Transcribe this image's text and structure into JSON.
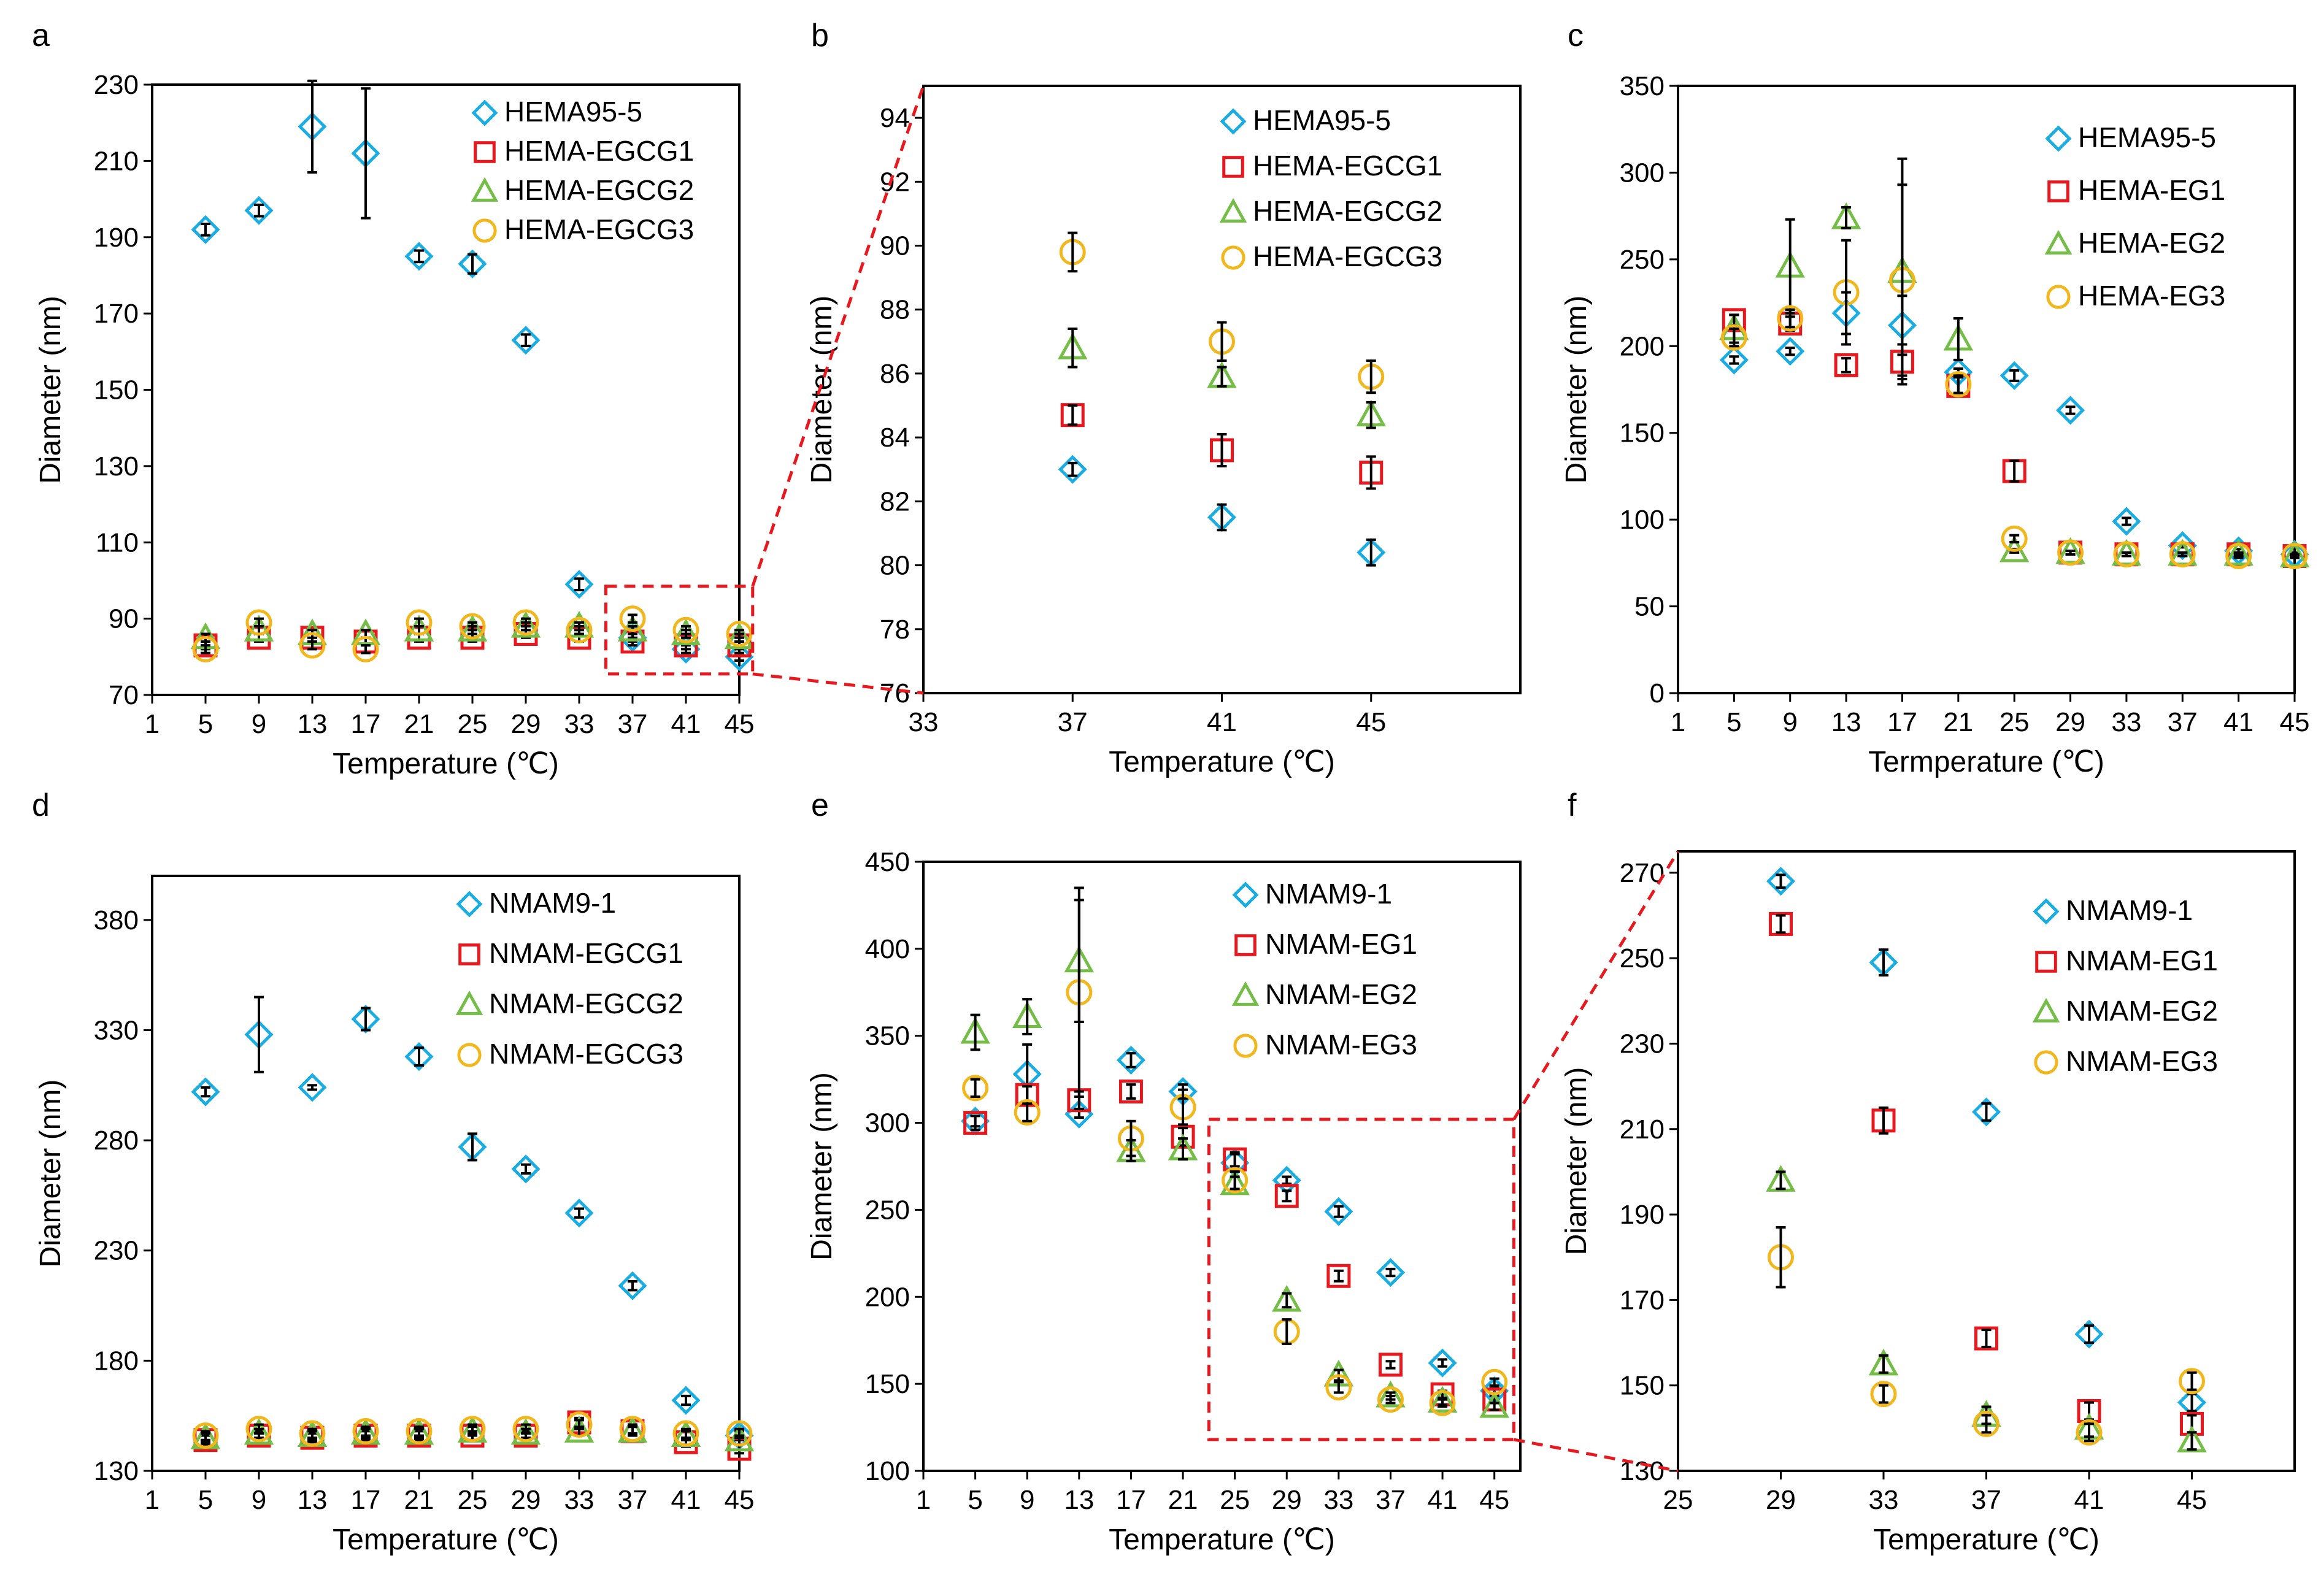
{
  "chart_data": [
    {
      "panel": "a",
      "type": "scatter",
      "xlabel": "Temperature (℃)",
      "ylabel": "Diameter (nm)",
      "xlim": [
        1,
        45
      ],
      "xticks": [
        1,
        5,
        9,
        13,
        17,
        21,
        25,
        29,
        33,
        37,
        41,
        45
      ],
      "ylim": [
        70,
        230
      ],
      "yticks": [
        70,
        90,
        110,
        130,
        150,
        170,
        190,
        210,
        230
      ],
      "legend_position": "top-right",
      "series": [
        {
          "name": "HEMA95-5",
          "marker": "diamond",
          "color": "#1AADE4",
          "x": [
            5,
            9,
            13,
            17,
            21,
            25,
            29,
            33,
            37,
            41,
            45
          ],
          "y": [
            192,
            197,
            219,
            212,
            185,
            183,
            163,
            99,
            85,
            82,
            80
          ],
          "err": [
            1.5,
            1.5,
            12,
            17,
            1.5,
            2.5,
            1.5,
            1.5,
            1,
            1,
            1
          ]
        },
        {
          "name": "HEMA-EGCG1",
          "marker": "square",
          "color": "#E8191E",
          "x": [
            5,
            9,
            13,
            17,
            21,
            25,
            29,
            33,
            37,
            41,
            45
          ],
          "y": [
            83,
            85,
            85,
            84,
            85,
            85,
            86,
            85,
            84,
            83,
            83
          ],
          "err": [
            1,
            1,
            1,
            1,
            1,
            1,
            1,
            1,
            1,
            1,
            1
          ]
        },
        {
          "name": "HEMA-EGCG2",
          "marker": "triangle",
          "color": "#74BE47",
          "x": [
            5,
            9,
            13,
            17,
            21,
            25,
            29,
            33,
            37,
            41,
            45
          ],
          "y": [
            85,
            87,
            86,
            86,
            87,
            87,
            88,
            88,
            87,
            86,
            85
          ],
          "err": [
            1,
            1,
            1,
            1,
            1,
            1,
            1,
            1,
            1,
            1,
            1
          ]
        },
        {
          "name": "HEMA-EGCG3",
          "marker": "circle",
          "color": "#F2B71C",
          "x": [
            5,
            9,
            13,
            17,
            21,
            25,
            29,
            33,
            37,
            41,
            45
          ],
          "y": [
            82,
            89,
            83,
            82,
            89,
            88,
            89,
            87,
            90,
            87,
            86
          ],
          "err": [
            1,
            1,
            1,
            1,
            1,
            1,
            1,
            1,
            1,
            1,
            1
          ]
        }
      ]
    },
    {
      "panel": "b",
      "type": "scatter",
      "xlabel": "Temperature (℃)",
      "ylabel": "Diameter (nm)",
      "xlim": [
        33,
        49
      ],
      "xticks": [
        33,
        37,
        41,
        45
      ],
      "ylim": [
        76,
        95
      ],
      "yticks": [
        76,
        78,
        80,
        82,
        84,
        86,
        88,
        90,
        92,
        94
      ],
      "legend_position": "top-right",
      "series": [
        {
          "name": "HEMA95-5",
          "marker": "diamond",
          "color": "#1AADE4",
          "x": [
            37,
            41,
            45
          ],
          "y": [
            83.0,
            81.5,
            80.4
          ],
          "err": [
            0.2,
            0.4,
            0.4
          ]
        },
        {
          "name": "HEMA-EGCG1",
          "marker": "square",
          "color": "#E8191E",
          "x": [
            37,
            41,
            45
          ],
          "y": [
            84.7,
            83.6,
            82.9
          ],
          "err": [
            0.3,
            0.5,
            0.5
          ]
        },
        {
          "name": "HEMA-EGCG2",
          "marker": "triangle",
          "color": "#74BE47",
          "x": [
            37,
            41,
            45
          ],
          "y": [
            86.8,
            85.9,
            84.7
          ],
          "err": [
            0.6,
            0.3,
            0.4
          ]
        },
        {
          "name": "HEMA-EGCG3",
          "marker": "circle",
          "color": "#F2B71C",
          "x": [
            37,
            41,
            45
          ],
          "y": [
            89.8,
            87.0,
            85.9
          ],
          "err": [
            0.6,
            0.6,
            0.5
          ]
        }
      ]
    },
    {
      "panel": "c",
      "type": "scatter",
      "xlabel": "Termperature (℃)",
      "ylabel": "Diameter (nm)",
      "xlim": [
        1,
        45
      ],
      "xticks": [
        1,
        5,
        9,
        13,
        17,
        21,
        25,
        29,
        33,
        37,
        41,
        45
      ],
      "ylim": [
        0,
        350
      ],
      "yticks": [
        0,
        50,
        100,
        150,
        200,
        250,
        300,
        350
      ],
      "legend_position": "top-right",
      "series": [
        {
          "name": "HEMA95-5",
          "marker": "diamond",
          "color": "#1AADE4",
          "x": [
            5,
            9,
            13,
            17,
            21,
            25,
            29,
            33,
            37,
            41,
            45
          ],
          "y": [
            192,
            197,
            219,
            212,
            185,
            183,
            163,
            99,
            85,
            82,
            80
          ],
          "err": [
            2,
            2,
            12,
            17,
            2,
            3,
            2,
            2,
            1,
            1,
            1
          ]
        },
        {
          "name": "HEMA-EG1",
          "marker": "square",
          "color": "#E8191E",
          "x": [
            5,
            9,
            13,
            17,
            21,
            25,
            29,
            33,
            37,
            41,
            45
          ],
          "y": [
            215,
            213,
            189,
            191,
            177,
            128,
            81,
            80,
            80,
            80,
            79
          ],
          "err": [
            3,
            4,
            4,
            10,
            5,
            6,
            1,
            1,
            1,
            1,
            1
          ]
        },
        {
          "name": "HEMA-EG2",
          "marker": "triangle",
          "color": "#74BE47",
          "x": [
            5,
            9,
            13,
            17,
            21,
            25,
            29,
            33,
            37,
            41,
            45
          ],
          "y": [
            210,
            246,
            274,
            243,
            204,
            82,
            81,
            80,
            80,
            80,
            79
          ],
          "err": [
            8,
            27,
            6,
            65,
            12,
            1,
            1,
            1,
            1,
            1,
            1
          ]
        },
        {
          "name": "HEMA-EG3",
          "marker": "circle",
          "color": "#F2B71C",
          "x": [
            5,
            9,
            13,
            17,
            21,
            25,
            29,
            33,
            37,
            41,
            45
          ],
          "y": [
            205,
            216,
            231,
            238,
            178,
            89,
            81,
            80,
            80,
            79,
            79
          ],
          "err": [
            5,
            5,
            30,
            55,
            5,
            2,
            1,
            1,
            1,
            1,
            1
          ]
        }
      ]
    },
    {
      "panel": "d",
      "type": "scatter",
      "xlabel": "Temperature (℃)",
      "ylabel": "Diameter (nm)",
      "xlim": [
        1,
        45
      ],
      "xticks": [
        1,
        5,
        9,
        13,
        17,
        21,
        25,
        29,
        33,
        37,
        41,
        45
      ],
      "ylim": [
        130,
        400
      ],
      "yticks": [
        130,
        180,
        230,
        280,
        330,
        380
      ],
      "legend_position": "top-right",
      "series": [
        {
          "name": "NMAM9-1",
          "marker": "diamond",
          "color": "#1AADE4",
          "x": [
            5,
            9,
            13,
            17,
            21,
            25,
            29,
            33,
            37,
            41,
            45
          ],
          "y": [
            302,
            328,
            304,
            335,
            318,
            277,
            267,
            247,
            214,
            162,
            146
          ],
          "err": [
            2,
            17,
            1,
            5,
            4,
            6,
            2,
            2,
            2,
            2,
            2
          ]
        },
        {
          "name": "NMAM-EGCG1",
          "marker": "square",
          "color": "#E8191E",
          "x": [
            5,
            9,
            13,
            17,
            21,
            25,
            29,
            33,
            37,
            41,
            45
          ],
          "y": [
            144,
            146,
            145,
            146,
            146,
            146,
            146,
            152,
            148,
            143,
            140
          ],
          "err": [
            2,
            2,
            2,
            2,
            2,
            2,
            2,
            2,
            2,
            2,
            2
          ]
        },
        {
          "name": "NMAM-EGCG2",
          "marker": "triangle",
          "color": "#74BE47",
          "x": [
            5,
            9,
            13,
            17,
            21,
            25,
            29,
            33,
            37,
            41,
            45
          ],
          "y": [
            145,
            147,
            146,
            147,
            147,
            148,
            147,
            148,
            148,
            146,
            144
          ],
          "err": [
            2,
            2,
            2,
            2,
            2,
            2,
            2,
            2,
            2,
            2,
            2
          ]
        },
        {
          "name": "NMAM-EGCG3",
          "marker": "circle",
          "color": "#F2B71C",
          "x": [
            5,
            9,
            13,
            17,
            21,
            25,
            29,
            33,
            37,
            41,
            45
          ],
          "y": [
            146,
            149,
            147,
            148,
            148,
            149,
            149,
            151,
            149,
            147,
            147
          ],
          "err": [
            2,
            2,
            2,
            2,
            2,
            2,
            2,
            2,
            2,
            2,
            2
          ]
        }
      ]
    },
    {
      "panel": "e",
      "type": "scatter",
      "xlabel": "Temperature (℃)",
      "ylabel": "Diameter (nm)",
      "xlim": [
        1,
        47
      ],
      "xticks": [
        1,
        5,
        9,
        13,
        17,
        21,
        25,
        29,
        33,
        37,
        41,
        45
      ],
      "ylim": [
        100,
        450
      ],
      "yticks": [
        100,
        150,
        200,
        250,
        300,
        350,
        400,
        450
      ],
      "legend_position": "top-right",
      "series": [
        {
          "name": "NMAM9-1",
          "marker": "diamond",
          "color": "#1AADE4",
          "x": [
            5,
            9,
            13,
            17,
            21,
            25,
            29,
            33,
            37,
            41,
            45
          ],
          "y": [
            301,
            328,
            305,
            336,
            318,
            277,
            267,
            249,
            214,
            162,
            146
          ],
          "err": [
            3,
            17,
            2,
            4,
            4,
            5,
            2,
            3,
            2,
            2,
            2
          ]
        },
        {
          "name": "NMAM-EG1",
          "marker": "square",
          "color": "#E8191E",
          "x": [
            5,
            9,
            13,
            17,
            21,
            25,
            29,
            33,
            37,
            41,
            45
          ],
          "y": [
            300,
            316,
            313,
            318,
            292,
            279,
            258,
            212,
            161,
            144,
            141
          ],
          "err": [
            4,
            5,
            5,
            4,
            5,
            4,
            3,
            3,
            2,
            2,
            2
          ]
        },
        {
          "name": "NMAM-EG2",
          "marker": "triangle",
          "color": "#74BE47",
          "x": [
            5,
            9,
            13,
            17,
            21,
            25,
            29,
            33,
            37,
            41,
            45
          ],
          "y": [
            352,
            361,
            393,
            284,
            285,
            265,
            198,
            155,
            143,
            140,
            137
          ],
          "err": [
            10,
            10,
            35,
            6,
            6,
            4,
            4,
            3,
            2,
            2,
            2
          ]
        },
        {
          "name": "NMAM-EG3",
          "marker": "circle",
          "color": "#F2B71C",
          "x": [
            5,
            9,
            13,
            17,
            21,
            25,
            29,
            33,
            37,
            41,
            45
          ],
          "y": [
            320,
            306,
            375,
            291,
            309,
            267,
            180,
            148,
            141,
            139,
            151
          ],
          "err": [
            5,
            5,
            60,
            10,
            10,
            5,
            7,
            3,
            2,
            2,
            2
          ]
        }
      ]
    },
    {
      "panel": "f",
      "type": "scatter",
      "xlabel": "Temperature (℃)",
      "ylabel": "Diameter (nm)",
      "xlim": [
        25,
        49
      ],
      "xticks": [
        25,
        29,
        33,
        37,
        41,
        45
      ],
      "ylim": [
        130,
        275
      ],
      "yticks": [
        130,
        150,
        170,
        190,
        210,
        230,
        250,
        270
      ],
      "legend_position": "top-right",
      "series": [
        {
          "name": "NMAM9-1",
          "marker": "diamond",
          "color": "#1AADE4",
          "x": [
            29,
            33,
            37,
            41,
            45
          ],
          "y": [
            268,
            249,
            214,
            162,
            146
          ],
          "err": [
            1.5,
            3,
            2,
            2,
            2
          ]
        },
        {
          "name": "NMAM-EG1",
          "marker": "square",
          "color": "#E8191E",
          "x": [
            29,
            33,
            37,
            41,
            45
          ],
          "y": [
            258,
            212,
            161,
            144,
            141
          ],
          "err": [
            2,
            3,
            2,
            2,
            2
          ]
        },
        {
          "name": "NMAM-EG2",
          "marker": "triangle",
          "color": "#74BE47",
          "x": [
            29,
            33,
            37,
            41,
            45
          ],
          "y": [
            198,
            155,
            143,
            140,
            137
          ],
          "err": [
            2,
            2,
            2,
            2,
            2
          ]
        },
        {
          "name": "NMAM-EG3",
          "marker": "circle",
          "color": "#F2B71C",
          "x": [
            29,
            33,
            37,
            41,
            45
          ],
          "y": [
            180,
            148,
            141,
            139,
            151
          ],
          "err": [
            7,
            2,
            2,
            2,
            2
          ]
        }
      ]
    }
  ]
}
